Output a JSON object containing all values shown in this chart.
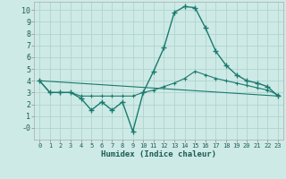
{
  "xlabel": "Humidex (Indice chaleur)",
  "background_color": "#ceeae6",
  "grid_color": "#afd4cf",
  "line_color": "#1a7a6e",
  "xlim": [
    -0.5,
    23.5
  ],
  "ylim": [
    -1.0,
    10.7
  ],
  "xticks": [
    0,
    1,
    2,
    3,
    4,
    5,
    6,
    7,
    8,
    9,
    10,
    11,
    12,
    13,
    14,
    15,
    16,
    17,
    18,
    19,
    20,
    21,
    22,
    23
  ],
  "yticks": [
    0,
    1,
    2,
    3,
    4,
    5,
    6,
    7,
    8,
    9,
    10
  ],
  "series1_x": [
    0,
    1,
    2,
    3,
    4,
    5,
    6,
    7,
    8,
    9,
    10,
    11,
    12,
    13,
    14,
    15,
    16,
    17,
    18,
    19,
    20,
    21,
    22,
    23
  ],
  "series1_y": [
    4.0,
    3.0,
    3.0,
    3.0,
    2.5,
    1.5,
    2.2,
    1.5,
    2.2,
    -0.3,
    3.0,
    4.8,
    6.8,
    9.8,
    10.3,
    10.2,
    8.5,
    6.5,
    5.3,
    4.5,
    4.0,
    3.8,
    3.5,
    2.7
  ],
  "series2_x": [
    0,
    1,
    2,
    3,
    4,
    5,
    6,
    7,
    8,
    9,
    10,
    11,
    12,
    13,
    14,
    15,
    16,
    17,
    18,
    19,
    20,
    21,
    22,
    23
  ],
  "series2_y": [
    4.0,
    3.0,
    3.0,
    3.0,
    2.7,
    2.7,
    2.7,
    2.7,
    2.7,
    2.7,
    3.0,
    3.2,
    3.5,
    3.8,
    4.2,
    4.8,
    4.5,
    4.2,
    4.0,
    3.8,
    3.6,
    3.4,
    3.2,
    2.8
  ],
  "series3_x": [
    0,
    23
  ],
  "series3_y": [
    4.0,
    2.7
  ]
}
